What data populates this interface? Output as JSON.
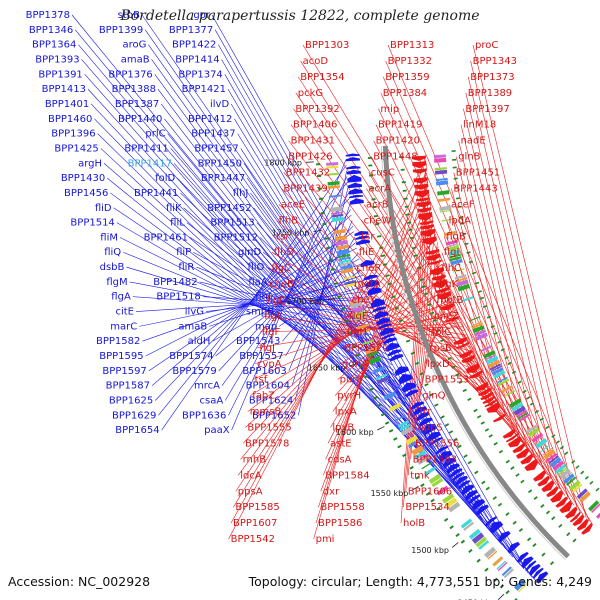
{
  "title": "Bordetella parapertussis 12822, complete genome",
  "footer": {
    "accession": "Accession: NC_002928",
    "summary": "Topology: circular; Length: 4,773,551 bp; Genes: 4,249"
  },
  "colors": {
    "forward": "#1a1aee",
    "reverse": "#ee1a1a",
    "backbone": "#888888",
    "tick": "#228822"
  },
  "scale_ticks": [
    "1450 kbp",
    "1500 kbp",
    "1550 kbp",
    "1600 kbp",
    "1650 kbp",
    "1700 kbp",
    "1750 kbp",
    "1800 kbp"
  ],
  "genes_left": [
    "BPP1378",
    "stbB",
    "gor",
    "BPP1346",
    "BPP1399",
    "BPP1377",
    "BPP1364",
    "aroG",
    "BPP1422",
    "BPP1393",
    "amaB",
    "BPP1414",
    "BPP1391",
    "BPP1376",
    "BPP1374",
    "BPP1413",
    "BPP1388",
    "BPP1421",
    "BPP1401",
    "BPP1387",
    "ilvD",
    "BPP1460",
    "BPP1440",
    "BPP1412",
    "BPP1396",
    "prlC",
    "BPP1437",
    "BPP1425",
    "BPP1411",
    "BPP1457",
    "argH",
    "BPP1417",
    "BPP1450",
    "BPP1430",
    "folD",
    "BPP1447",
    "BPP1456",
    "BPP1441",
    "flhJ",
    "fliD",
    "fliK",
    "BPP1452",
    "BPP1514",
    "fliL",
    "BPP1513",
    "fliM",
    "BPP1461",
    "BPP1512",
    "fliQ",
    "fliP",
    "glnD",
    "dsbB",
    "fliR",
    "fliO",
    "flgM",
    "BPP1482",
    "flaA",
    "flgA",
    "BPP1518",
    "flhI",
    "citE",
    "ilvG",
    "smpB",
    "marC",
    "amaB",
    "map",
    "BPP1582",
    "aldH",
    "BPP1543",
    "BPP1595",
    "BPP1574",
    "BPP1557",
    "BPP1597",
    "BPP1579",
    "BPP1603",
    "BPP1587",
    "mrcA",
    "BPP1604",
    "BPP1625",
    "csaA",
    "BPP1624",
    "BPP1629",
    "BPP1636",
    "BPP1652",
    "BPP1654",
    "paaX"
  ],
  "genes_right": [
    "BPP1303",
    "BPP1313",
    "proC",
    "acoD",
    "BPP1332",
    "BPP1343",
    "BPP1354",
    "BPP1359",
    "BPP1373",
    "pckG",
    "BPP1384",
    "BPP1389",
    "BPP1392",
    "mip",
    "BPP1397",
    "BPP1406",
    "BPP1419",
    "linM18",
    "BPP1431",
    "BPP1420",
    "nadE",
    "BPP1426",
    "BPP1448",
    "glnB",
    "BPP1432",
    "cusC",
    "BPP1451",
    "BPP1439",
    "acrA",
    "BPP1443",
    "aceE",
    "acrB",
    "aceF",
    "flhB",
    "cheW",
    "lpdA",
    "tsr",
    "tsr",
    "flgB",
    "flhD",
    "fliE",
    "flgI",
    "flgC",
    "cheR",
    "flhC",
    "cheB",
    "motA",
    "flgK",
    "flgD",
    "cheY",
    "motB",
    "flgL",
    "flgE",
    "cheZ",
    "flgF",
    "flgH",
    "folC",
    "flgJ",
    "BPP1520",
    "rpsB",
    "cvpA",
    "gdhA",
    "lpxD",
    "tsf",
    "purF",
    "BPP1553",
    "fabZ",
    "pyrH",
    "glnQ",
    "mmsB",
    "lpxA",
    "frr",
    "BPP1555",
    "lpxB",
    "uppS",
    "BPP1578",
    "astE",
    "BPP1556",
    "rnhB",
    "cdsA",
    "BPP1583",
    "ldcA",
    "BPP1584",
    "tmk",
    "ppsA",
    "dxr",
    "BPP1606",
    "BPP1585",
    "BPP1558",
    "BPP1534",
    "BPP1607",
    "BPP1586",
    "holB",
    "BPP1542",
    "pmi"
  ]
}
